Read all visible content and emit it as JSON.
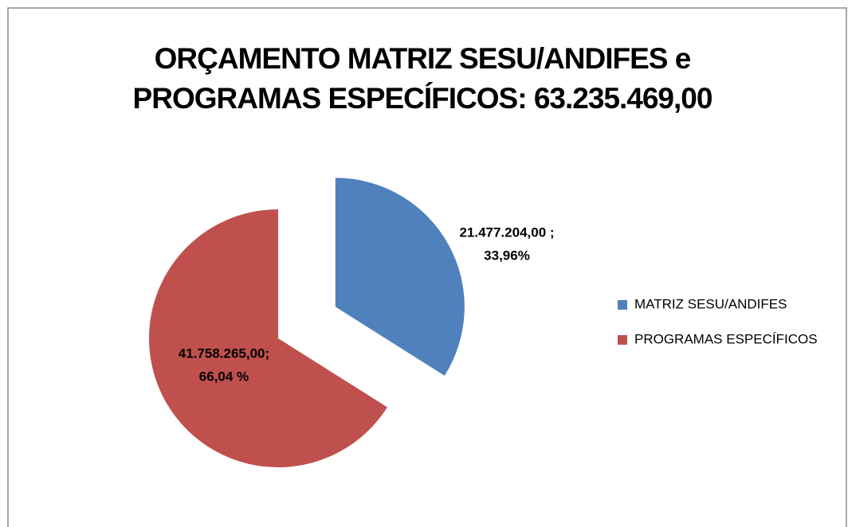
{
  "chart_data": {
    "type": "pie",
    "title": [
      "ORÇAMENTO MATRIZ SESU/ANDIFES e",
      "PROGRAMAS ESPECÍFICOS: 63.235.469,00"
    ],
    "categories": [
      "MATRIZ SESU/ANDIFES",
      "PROGRAMAS ESPECÍFICOS"
    ],
    "values": [
      21477204,
      41758265
    ],
    "value_labels": [
      [
        "21.477.204,00 ;",
        "33,96%"
      ],
      [
        "41.758.265,00;",
        "66,04 %"
      ]
    ],
    "colors": [
      "#4f81bd",
      "#c0504d"
    ],
    "exploded": [
      true,
      false
    ],
    "legend": "right"
  }
}
